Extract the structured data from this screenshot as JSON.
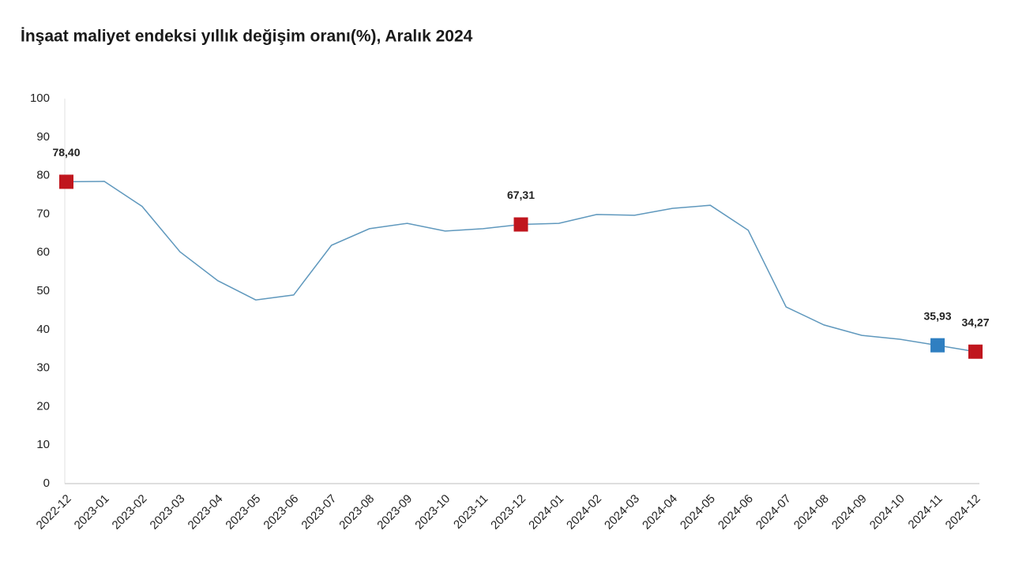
{
  "chart_data": {
    "type": "line",
    "title": "İnşaat maliyet endeksi yıllık değişim oranı(%), Aralık 2024",
    "categories": [
      "2022-12",
      "2023-01",
      "2023-02",
      "2023-03",
      "2023-04",
      "2023-05",
      "2023-06",
      "2023-07",
      "2023-08",
      "2023-09",
      "2023-10",
      "2023-11",
      "2023-12",
      "2024-01",
      "2024-02",
      "2024-03",
      "2024-04",
      "2024-05",
      "2024-06",
      "2024-07",
      "2024-08",
      "2024-09",
      "2024-10",
      "2024-11",
      "2024-12"
    ],
    "values": [
      78.4,
      78.5,
      72.0,
      60.2,
      52.7,
      47.7,
      49.0,
      61.9,
      66.2,
      67.6,
      65.6,
      66.2,
      67.31,
      67.6,
      69.9,
      69.7,
      71.5,
      72.3,
      65.8,
      45.9,
      41.2,
      38.5,
      37.5,
      35.93,
      34.27
    ],
    "value_labels": [
      "78,40",
      null,
      null,
      null,
      null,
      null,
      null,
      null,
      null,
      null,
      null,
      null,
      "67,31",
      null,
      null,
      null,
      null,
      null,
      null,
      null,
      null,
      null,
      null,
      "35,93",
      "34,27"
    ],
    "marker_colors": [
      "#c0161e",
      null,
      null,
      null,
      null,
      null,
      null,
      null,
      null,
      null,
      null,
      null,
      "#c0161e",
      null,
      null,
      null,
      null,
      null,
      null,
      null,
      null,
      null,
      null,
      "#2f7fc1",
      "#c0161e"
    ],
    "color": "#5f98bd",
    "ylim": [
      0,
      100
    ],
    "yticks": [
      0,
      10,
      20,
      30,
      40,
      50,
      60,
      70,
      80,
      90,
      100
    ],
    "grid": false
  }
}
